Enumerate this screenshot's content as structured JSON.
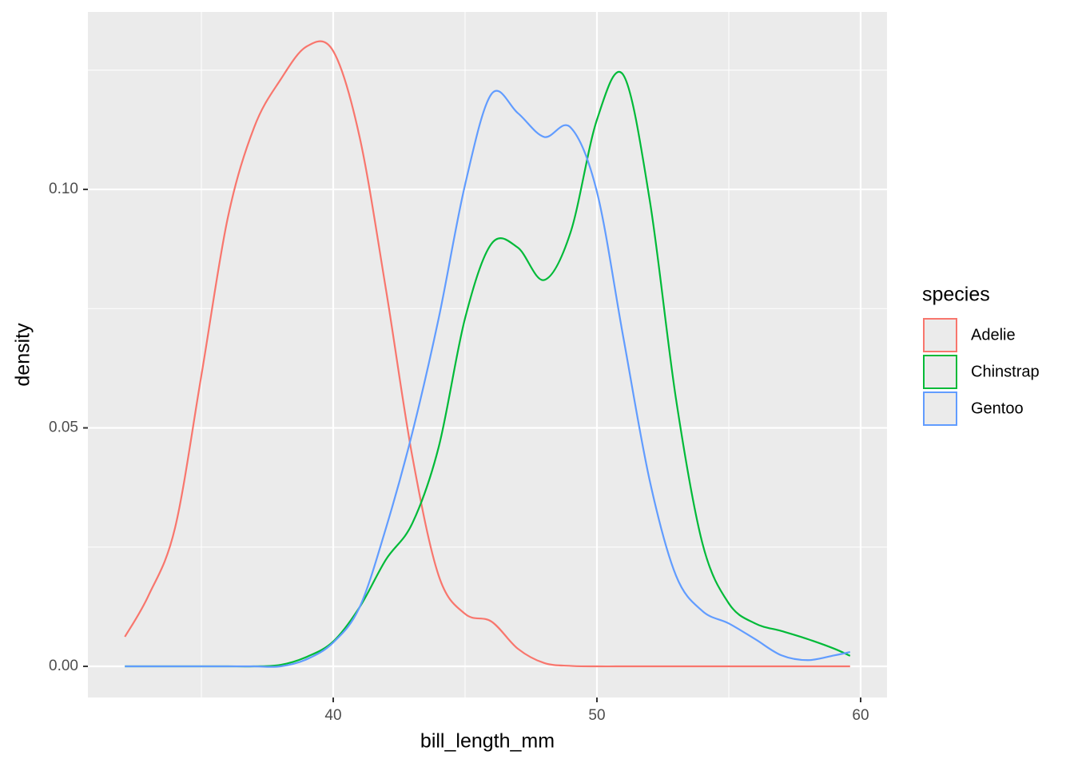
{
  "chart_data": {
    "type": "line",
    "x_label": "bill_length_mm",
    "y_label": "density",
    "x": [
      32.1,
      33,
      34,
      35,
      36,
      37,
      38,
      39,
      40,
      41,
      42,
      43,
      44,
      45,
      46,
      47,
      48,
      49,
      50,
      51,
      52,
      53,
      54,
      55,
      56,
      57,
      58,
      59,
      59.6
    ],
    "series": [
      {
        "name": "Adelie",
        "color": "#F8766D",
        "values": [
          0.0062,
          0.0149,
          0.029,
          0.061,
          0.094,
          0.113,
          0.123,
          0.13,
          0.129,
          0.111,
          0.079,
          0.044,
          0.019,
          0.011,
          0.0094,
          0.0037,
          0.0007,
          0.0001,
          0,
          0,
          0,
          0,
          0,
          0,
          0,
          0,
          0,
          0,
          0
        ]
      },
      {
        "name": "Chinstrap",
        "color": "#00BA38",
        "values": [
          0,
          0,
          0,
          0,
          0,
          0,
          0.0003,
          0.002,
          0.0052,
          0.0124,
          0.0224,
          0.03,
          0.046,
          0.073,
          0.0886,
          0.0878,
          0.081,
          0.091,
          0.1146,
          0.124,
          0.0978,
          0.056,
          0.0258,
          0.0132,
          0.009,
          0.0074,
          0.0057,
          0.0037,
          0.0022
        ]
      },
      {
        "name": "Gentoo",
        "color": "#619CFF",
        "values": [
          0,
          0,
          0,
          0,
          0,
          0,
          0,
          0.0015,
          0.005,
          0.0124,
          0.029,
          0.049,
          0.073,
          0.101,
          0.12,
          0.116,
          0.111,
          0.113,
          0.0995,
          0.069,
          0.039,
          0.019,
          0.0116,
          0.009,
          0.0057,
          0.0023,
          0.0013,
          0.0023,
          0.003
        ]
      }
    ],
    "xlim": [
      30.697,
      61.0
    ],
    "ylim": [
      -0.00653,
      0.1372
    ],
    "xticks": [
      40,
      50,
      60
    ],
    "yticks": [
      {
        "value": 0,
        "label": "0.00"
      },
      {
        "value": 0.05,
        "label": "0.05"
      },
      {
        "value": 0.1,
        "label": "0.10"
      }
    ],
    "grid": true,
    "legend_title": "species",
    "legend_position": "right"
  }
}
